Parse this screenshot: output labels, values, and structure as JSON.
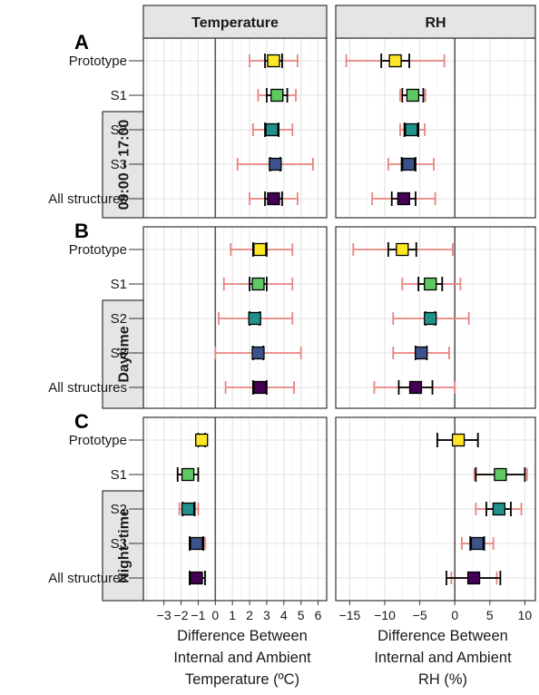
{
  "chart_data": {
    "type": "faceted-errorbar",
    "facet_columns": [
      "Temperature",
      "RH"
    ],
    "facet_rows": [
      {
        "letter": "A",
        "label": "09:00 – 17:00"
      },
      {
        "letter": "B",
        "label": "Daytime"
      },
      {
        "letter": "C",
        "label": "Night–time"
      }
    ],
    "categories": [
      "Prototype",
      "S1",
      "S2",
      "S3",
      "All structures"
    ],
    "category_colors": [
      "#FDE725",
      "#5EC962",
      "#21918C",
      "#3B528B",
      "#440154"
    ],
    "error_bar_colors": {
      "outer": "#E8837F",
      "inner": "#000000"
    },
    "axes": {
      "Temperature": {
        "xlim": [
          -4.2,
          6.5
        ],
        "ticks": [
          -3,
          -2,
          -1,
          0,
          1,
          2,
          3,
          4,
          5,
          6
        ],
        "tick_labels": [
          "−3",
          "−2",
          "−1",
          "0",
          "1",
          "2",
          "3",
          "4",
          "5",
          "6"
        ],
        "xlabel_lines": [
          "Difference Between",
          "Internal and Ambient",
          "Temperature (ºC)"
        ]
      },
      "RH": {
        "xlim": [
          -17,
          11.5
        ],
        "ticks": [
          -15,
          -10,
          -5,
          0,
          5,
          10
        ],
        "tick_labels": [
          "−15",
          "−10",
          "−5",
          "0",
          "5",
          "10"
        ],
        "xlabel_lines": [
          "Difference Between",
          "Internal and Ambient",
          "RH (%)"
        ]
      }
    },
    "grid": true,
    "data": {
      "Temperature": [
        [
          {
            "mean": 3.4,
            "inner": [
              2.9,
              3.9
            ],
            "outer": [
              2.0,
              4.8
            ]
          },
          {
            "mean": 3.6,
            "inner": [
              3.0,
              4.2
            ],
            "outer": [
              2.5,
              4.7
            ]
          },
          {
            "mean": 3.3,
            "inner": [
              2.9,
              3.7
            ],
            "outer": [
              2.2,
              4.5
            ]
          },
          {
            "mean": 3.5,
            "inner": [
              3.2,
              3.8
            ],
            "outer": [
              1.3,
              5.7
            ]
          },
          {
            "mean": 3.4,
            "inner": [
              2.9,
              3.9
            ],
            "outer": [
              2.0,
              4.8
            ]
          }
        ],
        [
          {
            "mean": 2.6,
            "inner": [
              2.2,
              3.0
            ],
            "outer": [
              0.9,
              4.5
            ]
          },
          {
            "mean": 2.5,
            "inner": [
              2.0,
              3.0
            ],
            "outer": [
              0.5,
              4.5
            ]
          },
          {
            "mean": 2.3,
            "inner": [
              2.0,
              2.6
            ],
            "outer": [
              0.2,
              4.5
            ]
          },
          {
            "mean": 2.5,
            "inner": [
              2.2,
              2.8
            ],
            "outer": [
              0.0,
              5.0
            ]
          },
          {
            "mean": 2.6,
            "inner": [
              2.2,
              3.0
            ],
            "outer": [
              0.6,
              4.6
            ]
          }
        ],
        [
          {
            "mean": -0.8,
            "inner": [
              -1.0,
              -0.6
            ],
            "outer": [
              -1.0,
              -0.6
            ]
          },
          {
            "mean": -1.6,
            "inner": [
              -2.2,
              -1.0
            ],
            "outer": [
              -2.2,
              -1.0
            ]
          },
          {
            "mean": -1.6,
            "inner": [
              -1.9,
              -1.2
            ],
            "outer": [
              -2.1,
              -1.0
            ]
          },
          {
            "mean": -1.1,
            "inner": [
              -1.5,
              -0.7
            ],
            "outer": [
              -1.5,
              -0.6
            ]
          },
          {
            "mean": -1.1,
            "inner": [
              -1.5,
              -0.6
            ],
            "outer": [
              -1.5,
              -0.6
            ]
          }
        ]
      ],
      "RH": [
        [
          {
            "mean": -8.5,
            "inner": [
              -10.5,
              -6.5
            ],
            "outer": [
              -15.5,
              -1.5
            ]
          },
          {
            "mean": -6.0,
            "inner": [
              -7.5,
              -4.5
            ],
            "outer": [
              -7.8,
              -4.2
            ]
          },
          {
            "mean": -6.2,
            "inner": [
              -7.2,
              -5.2
            ],
            "outer": [
              -7.8,
              -4.3
            ]
          },
          {
            "mean": -6.6,
            "inner": [
              -7.6,
              -5.6
            ],
            "outer": [
              -9.5,
              -3.0
            ]
          },
          {
            "mean": -7.3,
            "inner": [
              -9.0,
              -5.6
            ],
            "outer": [
              -11.8,
              -2.8
            ]
          }
        ],
        [
          {
            "mean": -7.5,
            "inner": [
              -9.5,
              -5.5
            ],
            "outer": [
              -14.5,
              -0.3
            ]
          },
          {
            "mean": -3.5,
            "inner": [
              -5.2,
              -1.8
            ],
            "outer": [
              -7.5,
              0.8
            ]
          },
          {
            "mean": -3.5,
            "inner": [
              -4.2,
              -2.8
            ],
            "outer": [
              -8.8,
              2.0
            ]
          },
          {
            "mean": -4.8,
            "inner": [
              -5.6,
              -4.0
            ],
            "outer": [
              -8.8,
              -0.8
            ]
          },
          {
            "mean": -5.6,
            "inner": [
              -8.0,
              -3.2
            ],
            "outer": [
              -11.5,
              0.0
            ]
          }
        ],
        [
          {
            "mean": 0.5,
            "inner": [
              -2.5,
              3.3
            ],
            "outer": [
              -2.5,
              3.3
            ]
          },
          {
            "mean": 6.5,
            "inner": [
              3.0,
              10.0
            ],
            "outer": [
              2.8,
              10.3
            ]
          },
          {
            "mean": 6.3,
            "inner": [
              4.5,
              8.0
            ],
            "outer": [
              3.0,
              9.5
            ]
          },
          {
            "mean": 3.2,
            "inner": [
              2.2,
              4.2
            ],
            "outer": [
              1.0,
              5.5
            ]
          },
          {
            "mean": 2.7,
            "inner": [
              -1.2,
              6.5
            ],
            "outer": [
              -0.5,
              6.0
            ]
          }
        ]
      ]
    }
  }
}
